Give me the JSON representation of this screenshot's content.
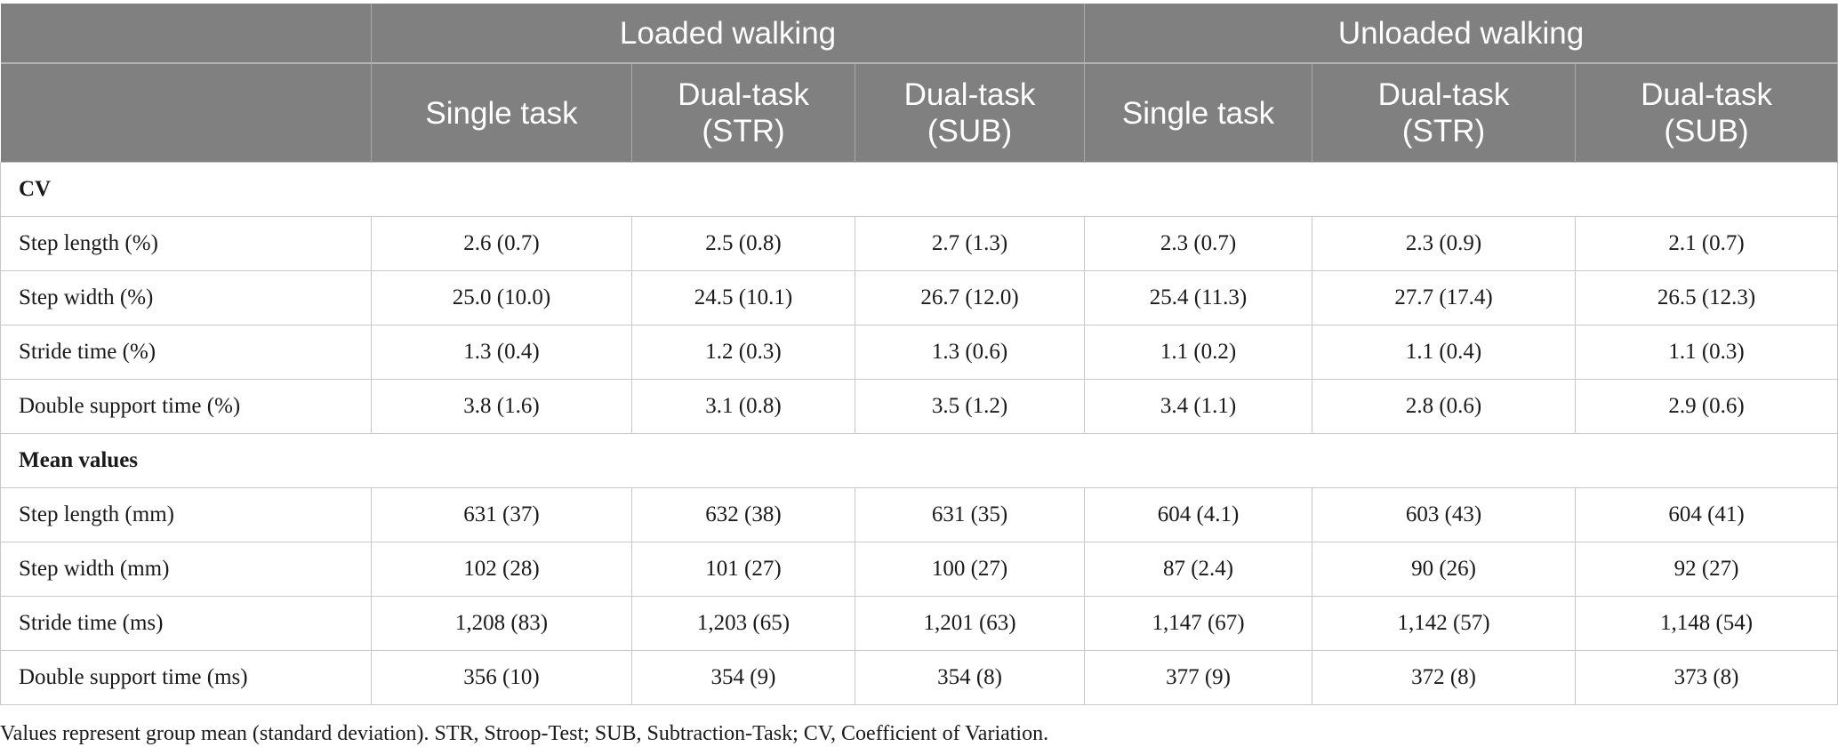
{
  "header": {
    "groups": [
      "Loaded walking",
      "Unloaded walking"
    ],
    "conditions": [
      [
        "Single task"
      ],
      [
        "Dual-task",
        "(STR)"
      ],
      [
        "Dual-task",
        "(SUB)"
      ],
      [
        "Single task"
      ],
      [
        "Dual-task",
        "(STR)"
      ],
      [
        "Dual-task",
        "(SUB)"
      ]
    ]
  },
  "sections": [
    {
      "title": "CV",
      "rows": [
        {
          "label": "Step length (%)",
          "values": [
            "2.6 (0.7)",
            "2.5 (0.8)",
            "2.7 (1.3)",
            "2.3 (0.7)",
            "2.3 (0.9)",
            "2.1 (0.7)"
          ]
        },
        {
          "label": "Step width (%)",
          "values": [
            "25.0 (10.0)",
            "24.5 (10.1)",
            "26.7 (12.0)",
            "25.4 (11.3)",
            "27.7 (17.4)",
            "26.5 (12.3)"
          ]
        },
        {
          "label": "Stride time (%)",
          "values": [
            "1.3 (0.4)",
            "1.2 (0.3)",
            "1.3 (0.6)",
            "1.1 (0.2)",
            "1.1 (0.4)",
            "1.1 (0.3)"
          ]
        },
        {
          "label": "Double support time (%)",
          "values": [
            "3.8 (1.6)",
            "3.1 (0.8)",
            "3.5 (1.2)",
            "3.4 (1.1)",
            "2.8 (0.6)",
            "2.9 (0.6)"
          ]
        }
      ]
    },
    {
      "title": "Mean values",
      "rows": [
        {
          "label": "Step length (mm)",
          "values": [
            "631 (37)",
            "632 (38)",
            "631 (35)",
            "604 (4.1)",
            "603 (43)",
            "604 (41)"
          ]
        },
        {
          "label": "Step width (mm)",
          "values": [
            "102 (28)",
            "101 (27)",
            "100 (27)",
            "87 (2.4)",
            "90 (26)",
            "92 (27)"
          ]
        },
        {
          "label": "Stride time (ms)",
          "values": [
            "1,208 (83)",
            "1,203 (65)",
            "1,201 (63)",
            "1,147 (67)",
            "1,142 (57)",
            "1,148 (54)"
          ]
        },
        {
          "label": "Double support time (ms)",
          "values": [
            "356 (10)",
            "354 (9)",
            "354 (8)",
            "377 (9)",
            "372 (8)",
            "373 (8)"
          ]
        }
      ]
    }
  ],
  "footnote": "Values represent group mean (standard deviation). STR, Stroop-Test; SUB, Subtraction-Task; CV, Coefficient of Variation.",
  "colors": {
    "header_bg": "#808080",
    "header_text": "#ffffff",
    "grid": "#c8c8c8"
  }
}
